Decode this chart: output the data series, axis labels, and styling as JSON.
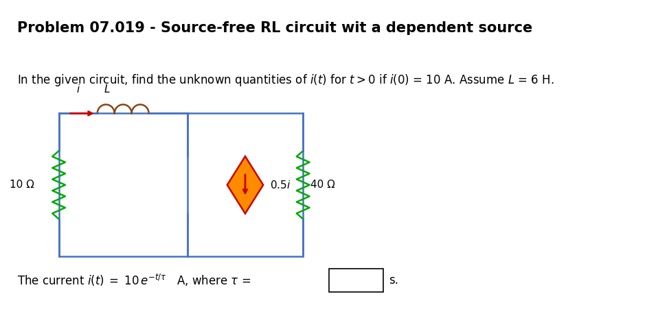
{
  "title": "Problem 07.019 - Source-free RL circuit wit a dependent source",
  "problem_text": "In the given circuit, find the unknown quantities of $i(t)$ for $t > 0$ if $i(0)$ = 10 A. Assume $L$ = 6 H.",
  "answer_text": "The current $i(t)\\;=\\;10\\,e^{-t/\\tau}$   A, where $\\tau$ =",
  "background_color": "#ffffff",
  "circuit_color": "#4472C4",
  "resistor_10_color": "#00AA00",
  "resistor_40_color": "#00AA00",
  "diamond_fill": "#FF8C00",
  "diamond_edge": "#CC0000",
  "arrow_color": "#CC0000",
  "inductor_color": "#8B4513",
  "title_fontsize": 15,
  "body_fontsize": 12
}
